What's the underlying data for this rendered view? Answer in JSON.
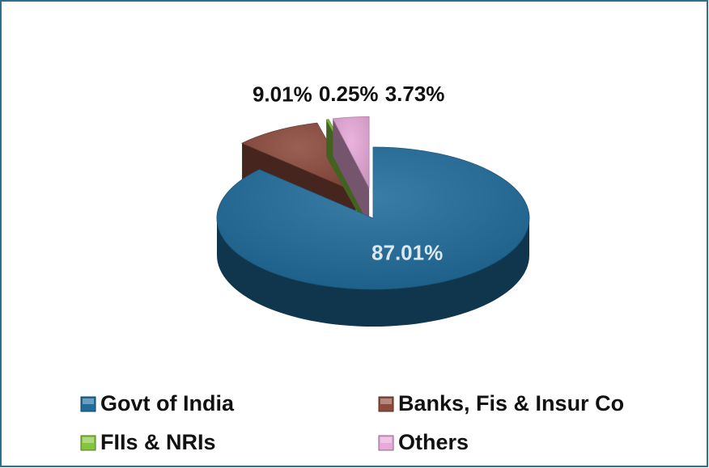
{
  "chart_data": {
    "type": "pie",
    "categories": [
      "Govt of India",
      "Banks, Fis & Insur Co",
      "FIIs & NRIs",
      "Others"
    ],
    "values": [
      87.01,
      9.01,
      0.25,
      3.73
    ],
    "value_labels": [
      "87.01%",
      "9.01%",
      "0.25%",
      "3.73%"
    ],
    "colors": [
      "#1f6b9a",
      "#8c4a3d",
      "#86c440",
      "#e7a9d9"
    ],
    "legend": "bottom"
  }
}
